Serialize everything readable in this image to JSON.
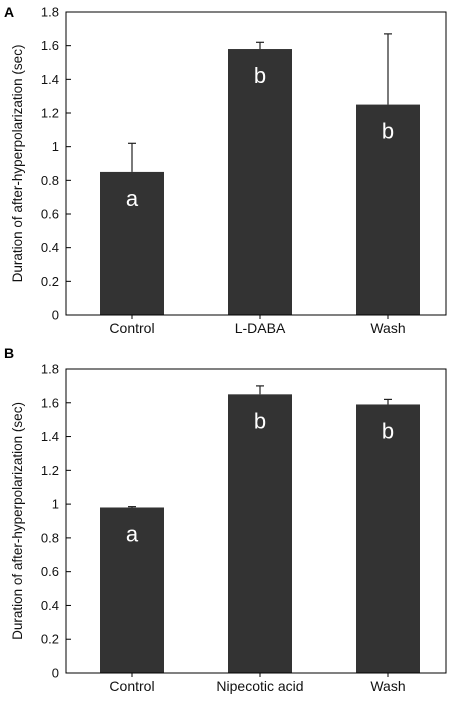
{
  "chart_data": [
    {
      "type": "bar",
      "panel": "A",
      "categories": [
        "Control",
        "L-DABA",
        "Wash"
      ],
      "values": [
        0.85,
        1.58,
        1.25
      ],
      "errors": [
        0.17,
        0.04,
        0.42
      ],
      "letters": [
        "a",
        "b",
        "b"
      ],
      "ylabel": "Duration of after-hyperpolarization (sec)",
      "ylim": [
        0,
        1.8
      ],
      "yticks": [
        "0",
        "0.2",
        "0.4",
        "0.6",
        "0.8",
        "1",
        "1.2",
        "1.4",
        "1.6",
        "1.8"
      ],
      "grid": false,
      "bar_color": "#333333"
    },
    {
      "type": "bar",
      "panel": "B",
      "categories": [
        "Control",
        "Nipecotic acid",
        "Wash"
      ],
      "values": [
        0.98,
        1.65,
        1.59
      ],
      "errors": [
        0.005,
        0.05,
        0.03
      ],
      "letters": [
        "a",
        "b",
        "b"
      ],
      "ylabel": "Duration of after-hyperpolarization (sec)",
      "ylim": [
        0,
        1.8
      ],
      "yticks": [
        "0",
        "0.2",
        "0.4",
        "0.6",
        "0.8",
        "1",
        "1.2",
        "1.4",
        "1.6",
        "1.8"
      ],
      "grid": false,
      "bar_color": "#333333"
    }
  ]
}
